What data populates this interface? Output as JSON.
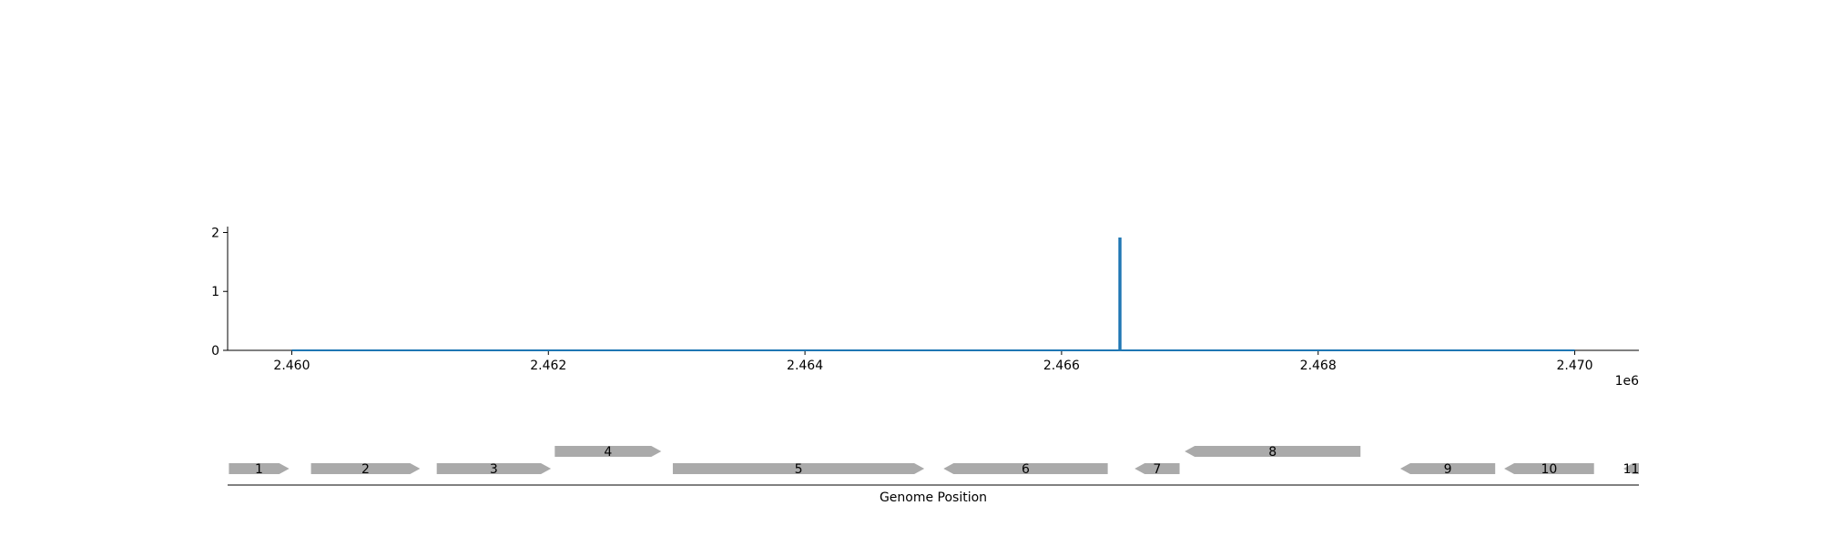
{
  "chart_data": [
    {
      "type": "line",
      "title": "",
      "xlabel": "",
      "ylabel": "",
      "x_offset_label": "1e6",
      "xlim": [
        2.4595,
        2.4705
      ],
      "ylim": [
        0,
        2.1
      ],
      "x_ticks": [
        2.46,
        2.462,
        2.464,
        2.466,
        2.468,
        2.47
      ],
      "x_tick_labels": [
        "2.460",
        "2.462",
        "2.464",
        "2.466",
        "2.468",
        "2.470"
      ],
      "y_ticks": [
        0,
        1,
        2
      ],
      "y_tick_labels": [
        "0",
        "1",
        "2"
      ],
      "grid": false,
      "color": "#1f77b4",
      "series": [
        {
          "x": [
            2.46,
            2.46645,
            2.46645,
            2.46645,
            2.46646,
            2.46646,
            2.47
          ],
          "y": [
            0,
            0,
            1.9,
            1.9,
            1.9,
            0,
            0
          ]
        }
      ]
    },
    {
      "type": "gene_track",
      "xlabel": "Genome Position",
      "xlim": [
        2.4595,
        2.4705
      ],
      "gene_color": "#aaaaaa",
      "genes": [
        {
          "label": "1",
          "start": 2.45951,
          "end": 2.45998,
          "strand": "+",
          "row": 0
        },
        {
          "label": "2",
          "start": 2.46015,
          "end": 2.461,
          "strand": "+",
          "row": 0
        },
        {
          "label": "3",
          "start": 2.46113,
          "end": 2.46202,
          "strand": "+",
          "row": 0
        },
        {
          "label": "4",
          "start": 2.46205,
          "end": 2.46288,
          "strand": "+",
          "row": 1
        },
        {
          "label": "5",
          "start": 2.46297,
          "end": 2.46493,
          "strand": "+",
          "row": 0
        },
        {
          "label": "6",
          "start": 2.46508,
          "end": 2.46636,
          "strand": "-",
          "row": 0
        },
        {
          "label": "7",
          "start": 2.46657,
          "end": 2.46692,
          "strand": "-",
          "row": 0
        },
        {
          "label": "8",
          "start": 2.46696,
          "end": 2.46833,
          "strand": "-",
          "row": 1
        },
        {
          "label": "9",
          "start": 2.46864,
          "end": 2.46938,
          "strand": "-",
          "row": 0
        },
        {
          "label": "10",
          "start": 2.46945,
          "end": 2.47015,
          "strand": "-",
          "row": 0
        },
        {
          "label": "11",
          "start": 2.47038,
          "end": 2.4705,
          "strand": "-",
          "row": 0
        }
      ]
    }
  ]
}
